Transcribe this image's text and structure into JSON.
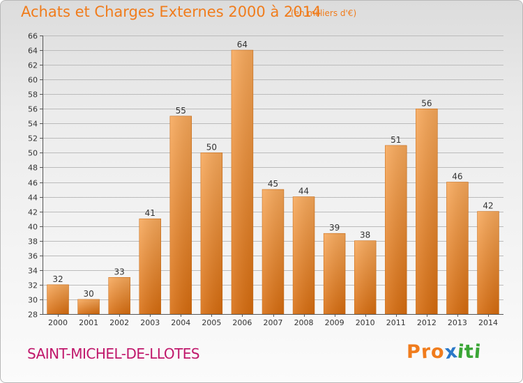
{
  "header": {
    "title": "Achats et Charges Externes 2000 à 2014",
    "subtitle": "(en milliers d'€)"
  },
  "footer": {
    "commune": "SAINT-MICHEL-DE-LLOTES",
    "logo": [
      "P",
      "r",
      "o",
      "x",
      "i",
      "t",
      "i"
    ],
    "logo_colors": [
      "#f07c1c",
      "#f07c1c",
      "#f07c1c",
      "#2a78c8",
      "#3aa636",
      "#3aa636",
      "#3aa636"
    ]
  },
  "chart_data": {
    "type": "bar",
    "categories": [
      "2000",
      "2001",
      "2002",
      "2003",
      "2004",
      "2005",
      "2006",
      "2007",
      "2008",
      "2009",
      "2010",
      "2011",
      "2012",
      "2013",
      "2014"
    ],
    "values": [
      32,
      30,
      33,
      41,
      55,
      50,
      64,
      45,
      44,
      39,
      38,
      51,
      56,
      46,
      42
    ],
    "ylim": [
      28,
      66
    ],
    "yticks": [
      28,
      30,
      32,
      34,
      36,
      38,
      40,
      42,
      44,
      46,
      48,
      50,
      52,
      54,
      56,
      58,
      60,
      62,
      64,
      66
    ],
    "grid": true,
    "bar_color": "#f0902c",
    "grid_color": "#bbbbbb"
  }
}
